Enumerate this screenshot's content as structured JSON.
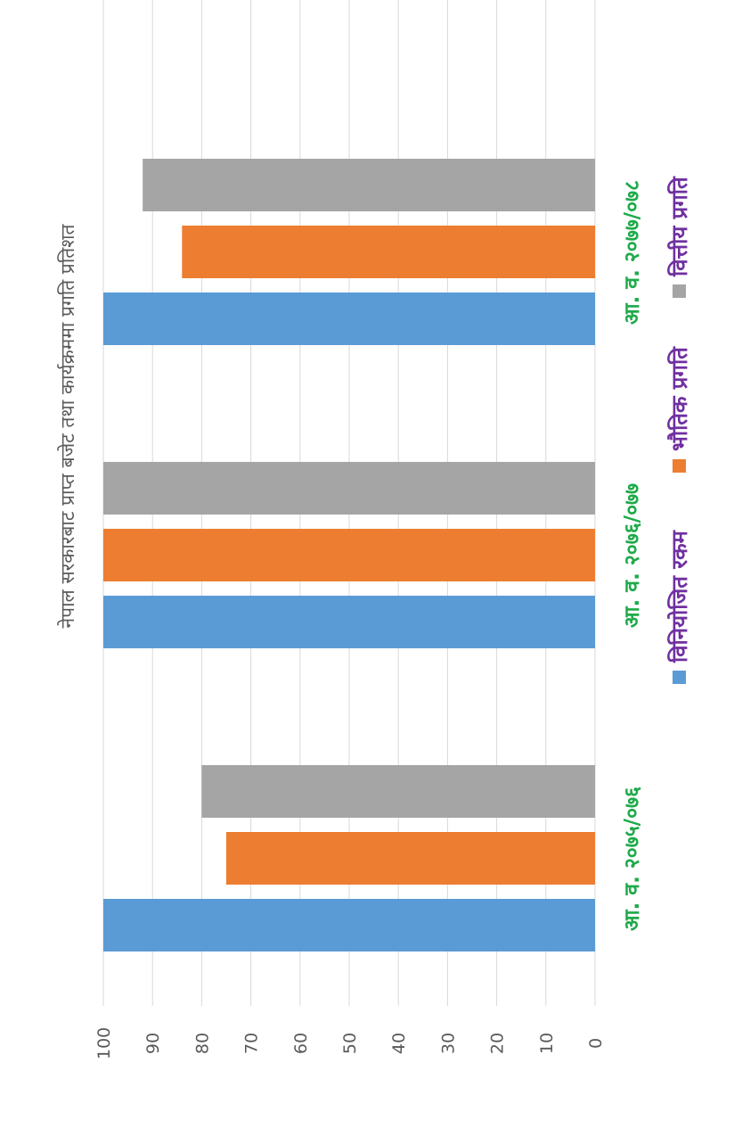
{
  "chart_data": {
    "type": "bar",
    "orientation": "rotated-90-clockwise",
    "title": "नेपाल सरकारबाट प्राप्त बजेट तथा कार्यक्रममा प्रगति प्रतिशत",
    "categories": [
      "आ. व. २०७५/०७६",
      "आ. व. २०७६/०७७",
      "आ. व. २०७७/०७८"
    ],
    "series": [
      {
        "name": "विनियोजित रकम",
        "values": [
          100,
          100,
          100
        ],
        "color": "#5b9bd5"
      },
      {
        "name": "भौतिक प्रगति",
        "values": [
          75,
          100,
          84
        ],
        "color": "#ed7d31"
      },
      {
        "name": "वित्तीय प्रगति",
        "values": [
          80,
          100,
          92
        ],
        "color": "#a5a5a5"
      }
    ],
    "ylim": [
      0,
      100
    ],
    "yticks": [
      "0",
      "10",
      "20",
      "30",
      "40",
      "50",
      "60",
      "70",
      "80",
      "90",
      "100"
    ],
    "grid": true,
    "legend": "bottom",
    "colors": {
      "category_label": "#1faa4a",
      "legend_text": "#7030a0",
      "title": "#595959",
      "tick": "#595959",
      "grid": "#d9d9d9"
    }
  }
}
